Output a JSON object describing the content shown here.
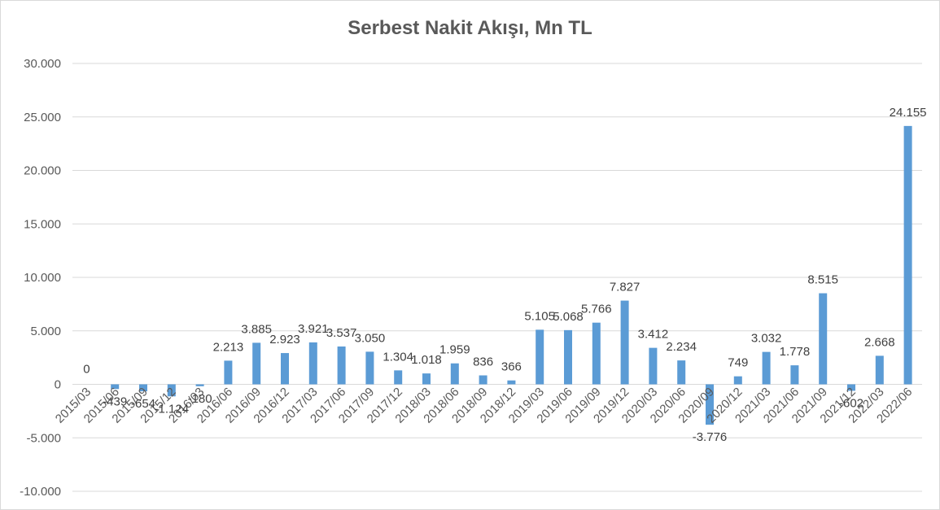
{
  "chart_data": {
    "type": "bar",
    "title": "Serbest Nakit Akışı, Mn TL",
    "xlabel": "",
    "ylabel": "",
    "ylim": [
      -10000,
      30000
    ],
    "yticks": [
      30000,
      25000,
      20000,
      15000,
      10000,
      5000,
      0,
      -5000,
      -10000
    ],
    "ytick_labels": [
      "30.000",
      "25.000",
      "20.000",
      "15.000",
      "10.000",
      "5.000",
      "0",
      "-5.000",
      "-10.000"
    ],
    "grid": true,
    "legend": "none",
    "bar_color": "#5b9bd5",
    "categories": [
      "2015/03",
      "2015/06",
      "2015/09",
      "2015/12",
      "2016/03",
      "2016/06",
      "2016/09",
      "2016/12",
      "2017/03",
      "2017/06",
      "2017/09",
      "2017/12",
      "2018/03",
      "2018/06",
      "2018/09",
      "2018/12",
      "2019/03",
      "2019/06",
      "2019/09",
      "2019/12",
      "2020/03",
      "2020/06",
      "2020/09",
      "2020/12",
      "2021/03",
      "2021/06",
      "2021/09",
      "2021/12",
      "2022/03",
      "2022/06"
    ],
    "values": [
      0,
      -439,
      -654,
      -1124,
      -180,
      2213,
      3885,
      2923,
      3921,
      3537,
      3050,
      1304,
      1018,
      1959,
      836,
      366,
      5105,
      5068,
      5766,
      7827,
      3412,
      2234,
      -3776,
      749,
      3032,
      1778,
      8515,
      -602,
      2668,
      24155
    ],
    "data_labels": [
      "0",
      "-439",
      "-654",
      "-1.124",
      "-180",
      "2.213",
      "3.885",
      "2.923",
      "3.921",
      "3.537",
      "3.050",
      "1.304",
      "1.018",
      "1.959",
      "836",
      "366",
      "5.105",
      "5.068",
      "5.766",
      "7.827",
      "3.412",
      "2.234",
      "-3.776",
      "749",
      "3.032",
      "1.778",
      "8.515",
      "-602",
      "2.668",
      "24.155"
    ]
  }
}
